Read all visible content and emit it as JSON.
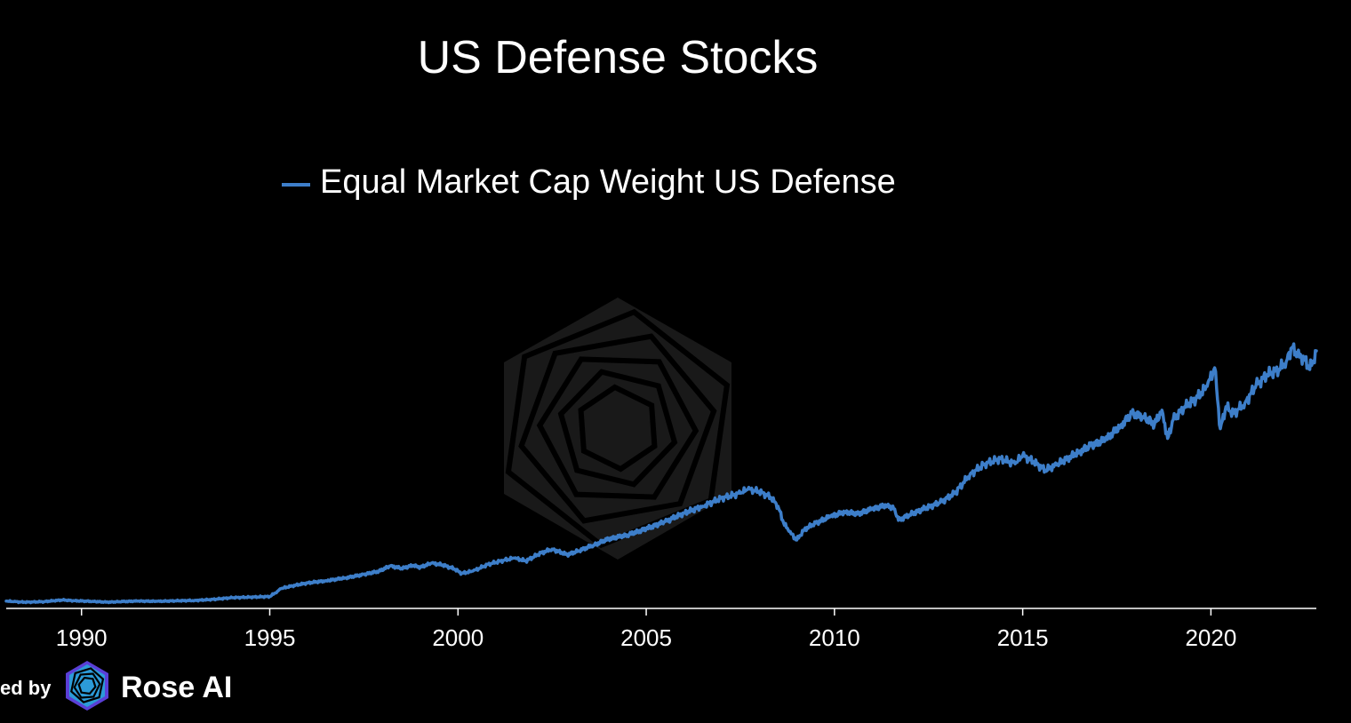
{
  "chart_data": {
    "type": "line",
    "title": "US Defense Stocks",
    "xlabel": "",
    "ylabel": "",
    "xlim": [
      1988.0,
      2022.8
    ],
    "ylim": [
      0,
      100
    ],
    "grid": false,
    "legend_position": "top-center",
    "x_ticks": [
      1990,
      1995,
      2000,
      2005,
      2010,
      2015,
      2020
    ],
    "x_tick_labels": [
      "1990",
      "1995",
      "2000",
      "2005",
      "2010",
      "2015",
      "2020"
    ],
    "series": [
      {
        "name": "Equal Market Cap Weight US Defense",
        "color": "#3d7ec9",
        "x": [
          1988.0,
          1988.2,
          1988.5,
          1989.0,
          1989.5,
          1989.8,
          1990.3,
          1990.7,
          1991.0,
          1991.5,
          1992.0,
          1992.5,
          1993.0,
          1993.5,
          1994.0,
          1994.5,
          1995.0,
          1995.2,
          1995.3,
          1995.6,
          1996.0,
          1996.5,
          1997.0,
          1997.5,
          1997.9,
          1998.2,
          1998.5,
          1998.8,
          1999.0,
          1999.3,
          1999.6,
          1999.9,
          2000.1,
          2000.4,
          2000.8,
          2001.2,
          2001.5,
          2001.8,
          2002.2,
          2002.5,
          2002.9,
          2003.2,
          2003.6,
          2004.0,
          2004.5,
          2005.0,
          2005.5,
          2006.0,
          2006.5,
          2007.0,
          2007.5,
          2007.7,
          2008.0,
          2008.3,
          2008.5,
          2008.65,
          2008.8,
          2009.0,
          2009.2,
          2009.5,
          2009.9,
          2010.3,
          2010.6,
          2011.0,
          2011.4,
          2011.6,
          2011.7,
          2012.0,
          2012.4,
          2012.8,
          2013.2,
          2013.6,
          2014.0,
          2014.4,
          2014.8,
          2015.0,
          2015.3,
          2015.6,
          2015.9,
          2016.2,
          2016.5,
          2016.8,
          2017.2,
          2017.6,
          2017.9,
          2018.2,
          2018.5,
          2018.7,
          2018.85,
          2019.0,
          2019.3,
          2019.6,
          2019.9,
          2020.1,
          2020.25,
          2020.4,
          2020.6,
          2020.9,
          2021.2,
          2021.5,
          2021.8,
          2022.0,
          2022.15,
          2022.3,
          2022.5,
          2022.6,
          2022.7,
          2022.8
        ],
        "values": [
          0.4,
          0.2,
          0.0,
          0.2,
          0.8,
          0.5,
          0.3,
          0.0,
          0.2,
          0.4,
          0.3,
          0.5,
          0.6,
          1.0,
          1.6,
          1.8,
          2.0,
          3.8,
          4.8,
          5.8,
          6.8,
          7.6,
          8.6,
          9.8,
          11.0,
          12.8,
          12.0,
          13.0,
          12.4,
          13.8,
          13.2,
          11.8,
          10.2,
          11.0,
          13.4,
          14.8,
          15.6,
          14.6,
          17.4,
          18.8,
          16.8,
          18.2,
          20.2,
          22.4,
          23.8,
          26.0,
          28.5,
          31.5,
          34.0,
          36.8,
          38.6,
          40.0,
          39.2,
          37.2,
          34.0,
          28.0,
          25.0,
          22.0,
          25.8,
          28.0,
          30.4,
          32.0,
          31.2,
          33.0,
          34.4,
          33.0,
          29.0,
          31.0,
          33.2,
          35.2,
          38.6,
          45.2,
          49.0,
          50.8,
          49.0,
          52.0,
          49.6,
          46.8,
          48.6,
          51.0,
          53.2,
          55.4,
          57.6,
          62.4,
          66.8,
          65.8,
          63.0,
          68.0,
          58.0,
          64.6,
          69.2,
          72.0,
          76.4,
          83.0,
          61.4,
          69.2,
          66.8,
          70.4,
          76.8,
          80.6,
          82.4,
          85.2,
          90.2,
          87.4,
          86.0,
          82.6,
          84.8,
          89.0
        ]
      }
    ]
  },
  "branding": {
    "powered_by": "ed by",
    "brand_name": "Rose AI"
  }
}
